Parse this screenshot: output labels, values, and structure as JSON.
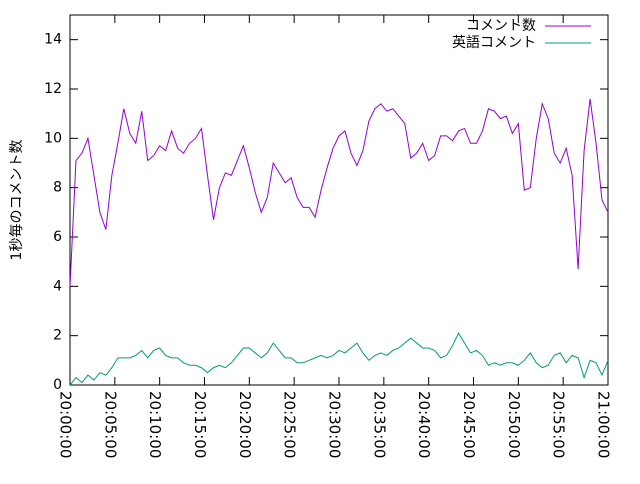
{
  "chart_data": {
    "type": "line",
    "ylabel": "1秒毎のコメント数",
    "x": [
      "20:00:00",
      "20:00:40",
      "20:01:20",
      "20:02:00",
      "20:02:40",
      "20:03:20",
      "20:04:00",
      "20:04:40",
      "20:05:20",
      "20:06:00",
      "20:06:40",
      "20:07:20",
      "20:08:00",
      "20:08:40",
      "20:09:20",
      "20:10:00",
      "20:10:40",
      "20:11:20",
      "20:12:00",
      "20:12:40",
      "20:13:20",
      "20:14:00",
      "20:14:40",
      "20:15:20",
      "20:16:00",
      "20:16:40",
      "20:17:20",
      "20:18:00",
      "20:18:40",
      "20:19:20",
      "20:20:00",
      "20:20:40",
      "20:21:20",
      "20:22:00",
      "20:22:40",
      "20:23:20",
      "20:24:00",
      "20:24:40",
      "20:25:20",
      "20:26:00",
      "20:26:40",
      "20:27:20",
      "20:28:00",
      "20:28:40",
      "20:29:20",
      "20:30:00",
      "20:30:40",
      "20:31:20",
      "20:32:00",
      "20:32:40",
      "20:33:20",
      "20:34:00",
      "20:34:40",
      "20:35:20",
      "20:36:00",
      "20:36:40",
      "20:37:20",
      "20:38:00",
      "20:38:40",
      "20:39:20",
      "20:40:00",
      "20:40:40",
      "20:41:20",
      "20:42:00",
      "20:42:40",
      "20:43:20",
      "20:44:00",
      "20:44:40",
      "20:45:20",
      "20:46:00",
      "20:46:40",
      "20:47:20",
      "20:48:00",
      "20:48:40",
      "20:49:20",
      "20:50:00",
      "20:50:40",
      "20:51:20",
      "20:52:00",
      "20:52:40",
      "20:53:20",
      "20:54:00",
      "20:54:40",
      "20:55:20",
      "20:56:00",
      "20:56:40",
      "20:57:20",
      "20:58:00",
      "20:58:40",
      "20:59:20",
      "21:00:00"
    ],
    "series": [
      {
        "name": "コメント数",
        "color": "#9400d3",
        "values": [
          4.0,
          9.1,
          9.4,
          10.0,
          8.5,
          7.0,
          6.3,
          8.5,
          9.8,
          11.2,
          10.2,
          9.8,
          11.1,
          9.1,
          9.3,
          9.7,
          9.5,
          10.3,
          9.6,
          9.4,
          9.8,
          10.0,
          10.4,
          8.5,
          6.7,
          8.0,
          8.6,
          8.5,
          9.1,
          9.7,
          8.8,
          7.8,
          7.0,
          7.6,
          9.0,
          8.6,
          8.2,
          8.4,
          7.6,
          7.2,
          7.2,
          6.8,
          7.9,
          8.8,
          9.6,
          10.1,
          10.3,
          9.4,
          8.9,
          9.5,
          10.7,
          11.2,
          11.4,
          11.1,
          11.2,
          10.9,
          10.6,
          9.2,
          9.4,
          9.8,
          9.1,
          9.3,
          10.1,
          10.1,
          9.9,
          10.3,
          10.4,
          9.8,
          9.8,
          10.3,
          11.2,
          11.1,
          10.8,
          10.9,
          10.2,
          10.6,
          7.9,
          8.0,
          10.0,
          11.4,
          10.8,
          9.4,
          9.0,
          9.6,
          8.5,
          4.7,
          9.5,
          11.6,
          9.8,
          7.5,
          7.0
        ]
      },
      {
        "name": "英語コメント",
        "color": "#009e73",
        "values": [
          0.0,
          0.3,
          0.1,
          0.4,
          0.2,
          0.5,
          0.4,
          0.7,
          1.1,
          1.1,
          1.1,
          1.2,
          1.4,
          1.1,
          1.4,
          1.5,
          1.2,
          1.1,
          1.1,
          0.9,
          0.8,
          0.8,
          0.7,
          0.5,
          0.7,
          0.8,
          0.7,
          0.9,
          1.2,
          1.5,
          1.5,
          1.3,
          1.1,
          1.3,
          1.7,
          1.4,
          1.1,
          1.1,
          0.9,
          0.9,
          1.0,
          1.1,
          1.2,
          1.1,
          1.2,
          1.4,
          1.3,
          1.5,
          1.7,
          1.3,
          1.0,
          1.2,
          1.3,
          1.2,
          1.4,
          1.5,
          1.7,
          1.9,
          1.7,
          1.5,
          1.5,
          1.4,
          1.1,
          1.2,
          1.6,
          2.1,
          1.7,
          1.3,
          1.4,
          1.2,
          0.8,
          0.9,
          0.8,
          0.9,
          0.9,
          0.8,
          1.0,
          1.3,
          0.9,
          0.7,
          0.8,
          1.2,
          1.3,
          0.9,
          1.2,
          1.1,
          0.3,
          1.0,
          0.9,
          0.4,
          1.0
        ]
      }
    ],
    "xlim": [
      "20:00:00",
      "21:00:00"
    ],
    "xticks": [
      "20:00:00",
      "20:05:00",
      "20:10:00",
      "20:15:00",
      "20:20:00",
      "20:25:00",
      "20:30:00",
      "20:35:00",
      "20:40:00",
      "20:45:00",
      "20:50:00",
      "20:55:00",
      "21:00:00"
    ],
    "ylim": [
      0,
      15
    ],
    "yticks": [
      0,
      2,
      4,
      6,
      8,
      10,
      12,
      14
    ],
    "legend": "upper right"
  }
}
